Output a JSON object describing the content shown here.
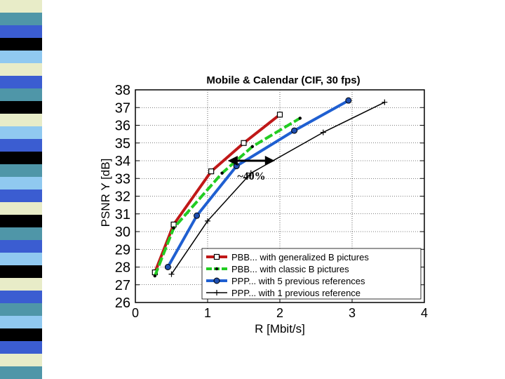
{
  "decoration": {
    "stripe_colors": [
      "#e8ecc8",
      "#4f96a8",
      "#3b5dd1",
      "#000000",
      "#90c9f0",
      "#e8ecc8",
      "#3b5dd1",
      "#4f96a8",
      "#000000",
      "#e8ecc8",
      "#90c9f0",
      "#3b5dd1",
      "#000000",
      "#4f96a8",
      "#90c9f0",
      "#3b5dd1",
      "#e8ecc8",
      "#000000",
      "#4f96a8",
      "#3b5dd1",
      "#90c9f0",
      "#000000",
      "#e8ecc8",
      "#3b5dd1",
      "#4f96a8",
      "#90c9f0",
      "#000000",
      "#3b5dd1",
      "#e8ecc8",
      "#4f96a8"
    ]
  },
  "chart_data": {
    "type": "line",
    "title": "Mobile & Calendar (CIF, 30 fps)",
    "xlabel": "R [Mbit/s]",
    "ylabel": "PSNR Y [dB]",
    "xlim": [
      0,
      4
    ],
    "ylim": [
      26,
      38
    ],
    "xticks": [
      "0",
      "1",
      "2",
      "3",
      "4"
    ],
    "yticks": [
      "26",
      "27",
      "28",
      "29",
      "30",
      "31",
      "32",
      "33",
      "34",
      "35",
      "36",
      "37",
      "38"
    ],
    "grid": true,
    "legend_position": "bottom-right",
    "annotation": "~40%",
    "annotation_arrow": {
      "y": 34.0,
      "x_from": 1.28,
      "x_to": 1.93
    },
    "series": [
      {
        "name": "PBB... with generalized B pictures",
        "color": "#c01818",
        "marker": "square",
        "width": 4,
        "x": [
          0.27,
          0.53,
          1.05,
          1.5,
          2.0
        ],
        "y": [
          27.7,
          30.4,
          33.4,
          35.0,
          36.6
        ]
      },
      {
        "name": "PBB... with classic B pictures",
        "color": "#22cc22",
        "marker": "dot",
        "width": 4,
        "dashed": true,
        "x": [
          0.27,
          0.53,
          1.2,
          1.62,
          2.28
        ],
        "y": [
          27.5,
          30.2,
          33.3,
          34.8,
          36.4
        ]
      },
      {
        "name": "PPP... with 5 previous references",
        "color": "#1f5fd1",
        "marker": "circle",
        "width": 4,
        "x": [
          0.45,
          0.85,
          1.4,
          2.2,
          2.95
        ],
        "y": [
          28.0,
          30.9,
          33.7,
          35.7,
          37.4
        ]
      },
      {
        "name": "PPP... with 1 previous reference",
        "color": "#000000",
        "marker": "plus",
        "width": 1.5,
        "x": [
          0.5,
          1.0,
          1.6,
          2.6,
          3.45
        ],
        "y": [
          27.6,
          30.6,
          33.3,
          35.6,
          37.3
        ]
      }
    ]
  }
}
